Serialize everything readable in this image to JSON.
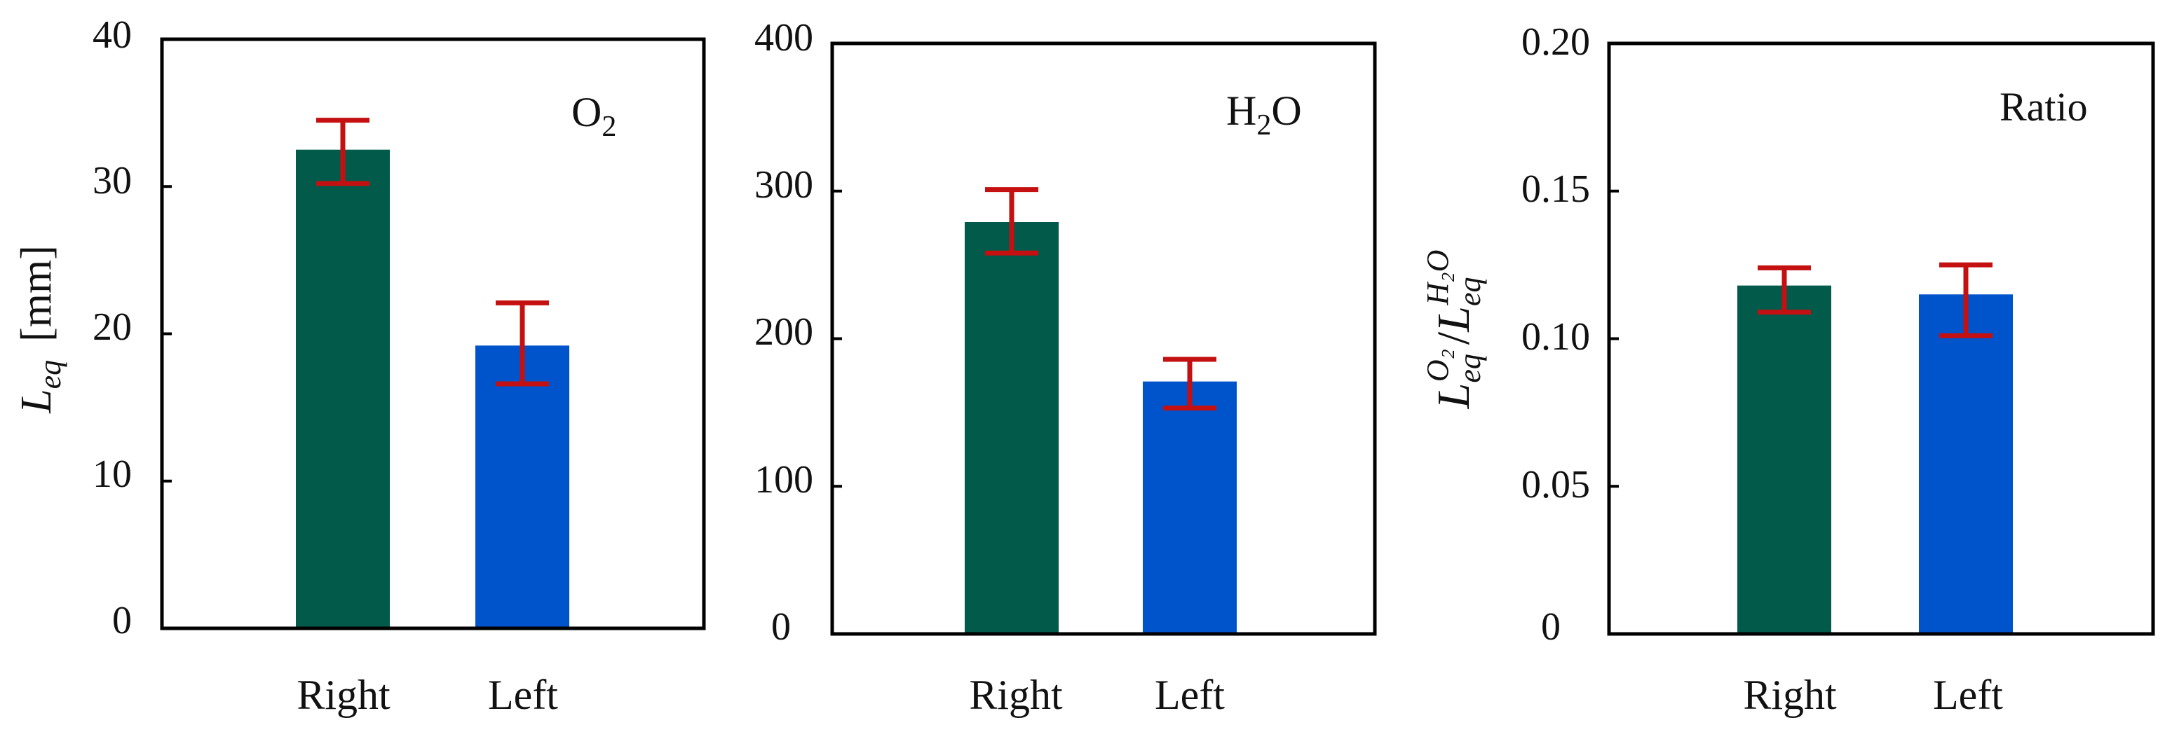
{
  "colors": {
    "right_bar": "#025a4b",
    "left_bar": "#0054cb",
    "error_bar": "#c41010",
    "axis": "#000000"
  },
  "chart_data": [
    {
      "type": "bar",
      "annotation": "O",
      "annotation_sub": "2",
      "ylabel_main": "L",
      "ylabel_sub": "eq",
      "ylabel_unit": "[mm]",
      "categories": [
        "Right",
        "Left"
      ],
      "values": [
        32.5,
        19.2
      ],
      "error_low": [
        30.2,
        16.6
      ],
      "error_high": [
        34.5,
        22.1
      ],
      "ylim": [
        0,
        40
      ],
      "yticks": [
        0,
        10,
        20,
        30,
        40
      ],
      "ytick_labels": [
        "0",
        "10",
        "20",
        "30",
        "40"
      ]
    },
    {
      "type": "bar",
      "annotation": "H",
      "annotation_sub": "2",
      "annotation_tail": "O",
      "categories": [
        "Right",
        "Left"
      ],
      "values": [
        279,
        171
      ],
      "error_low": [
        258,
        153
      ],
      "error_high": [
        301,
        186
      ],
      "ylim": [
        0,
        400
      ],
      "yticks": [
        0,
        100,
        200,
        300,
        400
      ],
      "ytick_labels": [
        "0",
        "100",
        "200",
        "300",
        "400"
      ]
    },
    {
      "type": "bar",
      "annotation": "Ratio",
      "ylabel_num": "L",
      "ylabel_num_sup": "O₂",
      "ylabel_num_sub": "eq",
      "ylabel_den": "L",
      "ylabel_den_sup": "H₂O",
      "ylabel_den_sub": "eq",
      "categories": [
        "Right",
        "Left"
      ],
      "values": [
        0.118,
        0.115
      ],
      "error_low": [
        0.109,
        0.101
      ],
      "error_high": [
        0.124,
        0.125
      ],
      "ylim": [
        0,
        0.2
      ],
      "yticks": [
        0,
        0.05,
        0.1,
        0.15,
        0.2
      ],
      "ytick_labels": [
        "0",
        "0.05",
        "0.10",
        "0.15",
        "0.20"
      ]
    }
  ]
}
